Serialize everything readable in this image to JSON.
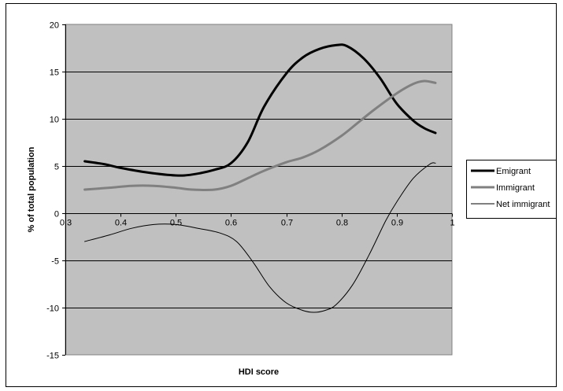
{
  "chart_data": {
    "type": "line",
    "title": "",
    "xlabel": "HDI score",
    "ylabel": "% of total population",
    "xlim": [
      0.3,
      1
    ],
    "ylim": [
      -15,
      20
    ],
    "x_ticks": [
      0.3,
      0.4,
      0.5,
      0.6,
      0.7,
      0.8,
      0.9,
      1
    ],
    "x_tick_labels": [
      "0.3",
      "0.4",
      "0.5",
      "0.6",
      "0.7",
      "0.8",
      "0.9",
      "1"
    ],
    "y_ticks": [
      -15,
      -10,
      -5,
      0,
      5,
      10,
      15,
      20
    ],
    "y_tick_labels": [
      "-15",
      "-10",
      "-5",
      "0",
      "5",
      "10",
      "15",
      "20"
    ],
    "grid": "horizontal",
    "plot_background": "#c0c0c0",
    "legend_position": "right",
    "series": [
      {
        "name": "Emigrant",
        "color": "#000000",
        "x": [
          0.335,
          0.37,
          0.4,
          0.45,
          0.5,
          0.53,
          0.57,
          0.6,
          0.63,
          0.66,
          0.7,
          0.73,
          0.76,
          0.79,
          0.81,
          0.84,
          0.87,
          0.9,
          0.93,
          0.95,
          0.97
        ],
        "y": [
          5.5,
          5.2,
          4.8,
          4.3,
          4.0,
          4.1,
          4.6,
          5.3,
          7.5,
          11.3,
          14.8,
          16.5,
          17.4,
          17.8,
          17.7,
          16.4,
          14.3,
          11.6,
          9.8,
          9.0,
          8.5
        ]
      },
      {
        "name": "Immigrant",
        "color": "#808080",
        "x": [
          0.335,
          0.38,
          0.42,
          0.46,
          0.5,
          0.53,
          0.57,
          0.6,
          0.63,
          0.66,
          0.7,
          0.73,
          0.76,
          0.8,
          0.83,
          0.86,
          0.9,
          0.93,
          0.95,
          0.97
        ],
        "y": [
          2.5,
          2.7,
          2.9,
          2.9,
          2.7,
          2.5,
          2.5,
          2.9,
          3.7,
          4.5,
          5.4,
          5.9,
          6.7,
          8.2,
          9.6,
          11.0,
          12.7,
          13.7,
          14.0,
          13.8
        ]
      },
      {
        "name": "Net immigrant",
        "color": "#000000",
        "x": [
          0.335,
          0.38,
          0.42,
          0.46,
          0.5,
          0.54,
          0.58,
          0.61,
          0.64,
          0.67,
          0.7,
          0.73,
          0.75,
          0.77,
          0.79,
          0.82,
          0.85,
          0.88,
          0.9,
          0.93,
          0.96,
          0.97
        ],
        "y": [
          -3.0,
          -2.3,
          -1.6,
          -1.2,
          -1.2,
          -1.6,
          -2.1,
          -3.0,
          -5.2,
          -7.8,
          -9.5,
          -10.3,
          -10.5,
          -10.3,
          -9.7,
          -7.6,
          -4.4,
          -0.8,
          1.2,
          3.7,
          5.2,
          5.3
        ]
      }
    ]
  }
}
